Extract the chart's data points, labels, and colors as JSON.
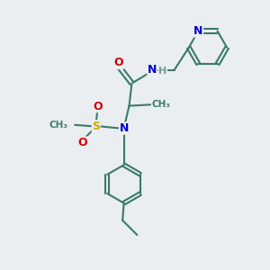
{
  "background_color": "#eaeef0",
  "atom_colors": {
    "C": "#3a7a6a",
    "N": "#0000cc",
    "O": "#cc0000",
    "S": "#ccaa00",
    "H": "#7a9a8a"
  },
  "bond_color": "#3a7a6a",
  "bond_width": 1.5,
  "figsize": [
    3.0,
    3.0
  ],
  "dpi": 100
}
